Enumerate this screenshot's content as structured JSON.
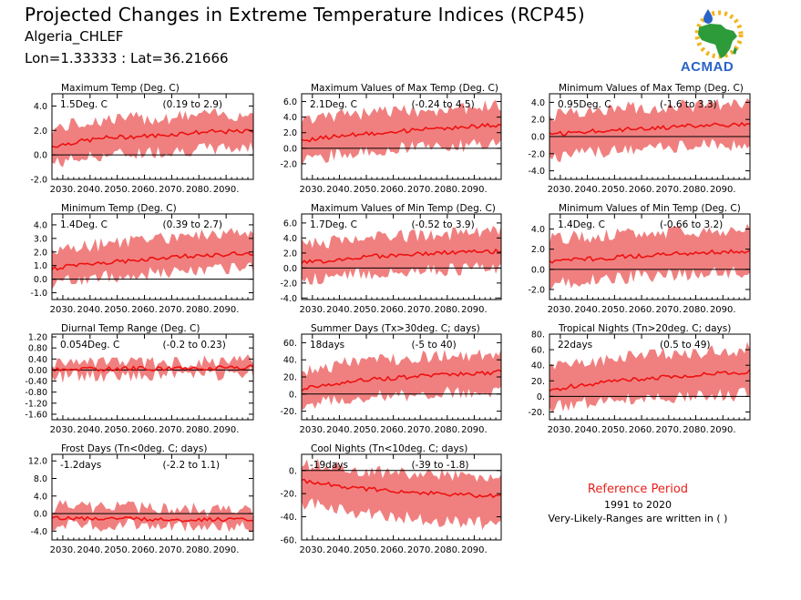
{
  "header": {
    "title": "Projected Changes in Extreme Temperature Indices (RCP45)",
    "region": "Algeria_CHLEF",
    "coords": "Lon=1.33333 : Lat=36.21666"
  },
  "logo": {
    "text": "ACMAD",
    "icon": "africa-map-logo-icon"
  },
  "colors": {
    "band": "#f08080",
    "line": "#ee1111",
    "zero": "#000000",
    "ref_title": "#e8201a"
  },
  "reference": {
    "title": "Reference Period",
    "years": "1991 to 2020",
    "note": "Very-Likely-Ranges are written in ( )"
  },
  "chart_data": [
    {
      "type": "area",
      "title": "Maximum Temp (Deg. C)",
      "value_label": "1.5Deg. C",
      "range_label": "(0.19 to 2.9)",
      "xlim": [
        2026,
        2100
      ],
      "xticks": [
        "2030.",
        "2040.",
        "2050.",
        "2060.",
        "2070.",
        "2080.",
        "2090."
      ],
      "ylim": [
        -2,
        5
      ],
      "yticks": [
        -2,
        0,
        2,
        4
      ],
      "ytick_labels": [
        "-2.0",
        "0.0",
        "2.0",
        "4.0"
      ],
      "x": [
        2026,
        2036,
        2046,
        2056,
        2066,
        2076,
        2086,
        2096,
        2100
      ],
      "median": [
        0.7,
        1.1,
        1.4,
        1.5,
        1.6,
        1.8,
        1.9,
        1.9,
        2.0
      ],
      "lower": [
        -0.7,
        -0.3,
        0.0,
        0.1,
        0.3,
        0.4,
        0.5,
        0.6,
        0.6
      ],
      "upper": [
        2.1,
        2.6,
        2.9,
        3.0,
        3.0,
        3.2,
        3.3,
        3.3,
        3.4
      ]
    },
    {
      "type": "area",
      "title": "Maximum Values of Max Temp (Deg. C)",
      "value_label": "2.1Deg. C",
      "range_label": "(-0.24 to 4.5)",
      "xlim": [
        2026,
        2100
      ],
      "xticks": [
        "2030.",
        "2040.",
        "2050.",
        "2060.",
        "2070.",
        "2080.",
        "2090."
      ],
      "ylim": [
        -4,
        7
      ],
      "yticks": [
        -2,
        0,
        2,
        4,
        6
      ],
      "ytick_labels": [
        "-2.0",
        "0.0",
        "2.0",
        "4.0",
        "6.0"
      ],
      "x": [
        2026,
        2036,
        2046,
        2056,
        2066,
        2076,
        2086,
        2096,
        2100
      ],
      "median": [
        1.0,
        1.4,
        1.8,
        2.0,
        2.3,
        2.5,
        2.7,
        2.9,
        3.0
      ],
      "lower": [
        -1.5,
        -1.0,
        -0.5,
        -0.2,
        0.0,
        0.2,
        0.3,
        0.5,
        0.5
      ],
      "upper": [
        3.5,
        4.0,
        4.4,
        4.6,
        4.8,
        5.0,
        5.2,
        5.4,
        5.5
      ]
    },
    {
      "type": "area",
      "title": "Minimum Values of Max Temp (Deg. C)",
      "value_label": "0.95Deg. C",
      "range_label": "(-1.6 to 3.3)",
      "xlim": [
        2026,
        2100
      ],
      "xticks": [
        "2030.",
        "2040.",
        "2050.",
        "2060.",
        "2070.",
        "2080.",
        "2090."
      ],
      "ylim": [
        -5,
        5
      ],
      "yticks": [
        -4,
        -2,
        0,
        2,
        4
      ],
      "ytick_labels": [
        "-4.0",
        "-2.0",
        "0.0",
        "2.0",
        "4.0"
      ],
      "x": [
        2026,
        2036,
        2046,
        2056,
        2066,
        2076,
        2086,
        2096,
        2100
      ],
      "median": [
        0.2,
        0.5,
        0.7,
        0.9,
        1.0,
        1.2,
        1.3,
        1.4,
        1.3
      ],
      "lower": [
        -2.5,
        -2.0,
        -1.8,
        -1.5,
        -1.3,
        -1.2,
        -1.0,
        -1.0,
        -1.0
      ],
      "upper": [
        2.5,
        3.0,
        3.2,
        3.4,
        3.5,
        3.6,
        3.7,
        3.8,
        3.8
      ]
    },
    {
      "type": "area",
      "title": "Minimum Temp (Deg. C)",
      "value_label": "1.4Deg. C",
      "range_label": "(0.39 to 2.7)",
      "xlim": [
        2026,
        2100
      ],
      "xticks": [
        "2030.",
        "2040.",
        "2050.",
        "2060.",
        "2070.",
        "2080.",
        "2090."
      ],
      "ylim": [
        -1.5,
        4.8
      ],
      "yticks": [
        -1,
        0,
        1,
        2,
        3,
        4
      ],
      "ytick_labels": [
        "-1.0",
        "0.0",
        "1.0",
        "2.0",
        "3.0",
        "4.0"
      ],
      "x": [
        2026,
        2036,
        2046,
        2056,
        2066,
        2076,
        2086,
        2096,
        2100
      ],
      "median": [
        0.8,
        1.0,
        1.2,
        1.4,
        1.5,
        1.7,
        1.8,
        1.9,
        1.9
      ],
      "lower": [
        -0.3,
        0.0,
        0.2,
        0.3,
        0.5,
        0.6,
        0.7,
        0.8,
        0.8
      ],
      "upper": [
        2.0,
        2.3,
        2.6,
        2.8,
        3.0,
        3.2,
        3.3,
        3.4,
        3.5
      ]
    },
    {
      "type": "area",
      "title": "Maximum Values of Min Temp (Deg. C)",
      "value_label": "1.7Deg. C",
      "range_label": "(-0.52 to 3.9)",
      "xlim": [
        2026,
        2100
      ],
      "xticks": [
        "2030.",
        "2040.",
        "2050.",
        "2060.",
        "2070.",
        "2080.",
        "2090."
      ],
      "ylim": [
        -4.2,
        7.2
      ],
      "yticks": [
        -4,
        -2,
        0,
        2,
        4,
        6
      ],
      "ytick_labels": [
        "-4.0",
        "-2.0",
        "0.0",
        "2.0",
        "4.0",
        "6.0"
      ],
      "x": [
        2026,
        2036,
        2046,
        2056,
        2066,
        2076,
        2086,
        2096,
        2100
      ],
      "median": [
        0.7,
        1.0,
        1.4,
        1.6,
        1.8,
        2.0,
        2.1,
        2.2,
        2.2
      ],
      "lower": [
        -1.5,
        -1.2,
        -0.8,
        -0.6,
        -0.4,
        -0.2,
        -0.1,
        0.0,
        0.0
      ],
      "upper": [
        3.0,
        3.5,
        3.9,
        4.1,
        4.3,
        4.5,
        4.6,
        4.8,
        4.8
      ]
    },
    {
      "type": "area",
      "title": "Minimum Values of Min Temp (Deg. C)",
      "value_label": "1.4Deg. C",
      "range_label": "(-0.66 to 3.2)",
      "xlim": [
        2026,
        2100
      ],
      "xticks": [
        "2030.",
        "2040.",
        "2050.",
        "2060.",
        "2070.",
        "2080.",
        "2090."
      ],
      "ylim": [
        -3,
        5.5
      ],
      "yticks": [
        -2,
        0,
        2,
        4
      ],
      "ytick_labels": [
        "-2.0",
        "0.0",
        "2.0",
        "4.0"
      ],
      "x": [
        2026,
        2036,
        2046,
        2056,
        2066,
        2076,
        2086,
        2096,
        2100
      ],
      "median": [
        0.8,
        1.0,
        1.1,
        1.3,
        1.4,
        1.6,
        1.7,
        1.8,
        1.7
      ],
      "lower": [
        -1.5,
        -1.2,
        -1.0,
        -0.8,
        -0.6,
        -0.5,
        -0.4,
        -0.3,
        -0.3
      ],
      "upper": [
        3.0,
        3.2,
        3.4,
        3.5,
        3.6,
        3.7,
        3.8,
        3.9,
        3.9
      ]
    },
    {
      "type": "area",
      "title": "Diurnal Temp Range (Deg. C)",
      "value_label": "0.054Deg. C",
      "range_label": "(-0.2 to 0.23)",
      "xlim": [
        2026,
        2100
      ],
      "xticks": [
        "2030.",
        "2040.",
        "2050.",
        "2060.",
        "2070.",
        "2080.",
        "2090."
      ],
      "ylim": [
        -1.8,
        1.3
      ],
      "yticks": [
        -1.6,
        -1.2,
        -0.8,
        -0.4,
        0,
        0.4,
        0.8,
        1.2
      ],
      "ytick_labels": [
        "-1.60",
        "-1.20",
        "-0.80",
        "-0.40",
        "0.00",
        "0.40",
        "0.80",
        "1.20"
      ],
      "x": [
        2026,
        2036,
        2046,
        2056,
        2066,
        2076,
        2086,
        2096,
        2100
      ],
      "median": [
        0.0,
        0.02,
        0.04,
        0.05,
        0.06,
        0.07,
        0.08,
        0.1,
        0.15
      ],
      "lower": [
        -0.25,
        -0.2,
        -0.2,
        -0.18,
        -0.16,
        -0.15,
        -0.14,
        -0.12,
        -0.1
      ],
      "upper": [
        0.2,
        0.22,
        0.24,
        0.25,
        0.26,
        0.28,
        0.3,
        0.32,
        0.35
      ]
    },
    {
      "type": "area",
      "title": "Summer Days (Tx>30deg. C; days)",
      "value_label": "18days",
      "range_label": "(-5 to 40)",
      "xlim": [
        2026,
        2100
      ],
      "xticks": [
        "2030.",
        "2040.",
        "2050.",
        "2060.",
        "2070.",
        "2080.",
        "2090."
      ],
      "ylim": [
        -30,
        70
      ],
      "yticks": [
        -20,
        0,
        20,
        40,
        60
      ],
      "ytick_labels": [
        "-20.",
        "0.",
        "20.",
        "40.",
        "60."
      ],
      "x": [
        2026,
        2036,
        2046,
        2056,
        2066,
        2076,
        2086,
        2096,
        2100
      ],
      "median": [
        6,
        11,
        15,
        18,
        20,
        22,
        24,
        25,
        26
      ],
      "lower": [
        -12,
        -8,
        -5,
        -3,
        -1,
        1,
        2,
        3,
        4
      ],
      "upper": [
        25,
        32,
        38,
        40,
        42,
        44,
        46,
        47,
        48
      ]
    },
    {
      "type": "area",
      "title": "Tropical Nights (Tn>20deg. C; days)",
      "value_label": "22days",
      "range_label": "(0.5 to 49)",
      "xlim": [
        2026,
        2100
      ],
      "xticks": [
        "2030.",
        "2040.",
        "2050.",
        "2060.",
        "2070.",
        "2080.",
        "2090."
      ],
      "ylim": [
        -30,
        80
      ],
      "yticks": [
        -20,
        0,
        20,
        40,
        60,
        80
      ],
      "ytick_labels": [
        "-20.",
        "0.",
        "20.",
        "40.",
        "60.",
        "80."
      ],
      "x": [
        2026,
        2036,
        2046,
        2056,
        2066,
        2076,
        2086,
        2096,
        2100
      ],
      "median": [
        8,
        14,
        18,
        21,
        24,
        27,
        29,
        31,
        32
      ],
      "lower": [
        -15,
        -10,
        -6,
        -4,
        -2,
        0,
        1,
        2,
        3
      ],
      "upper": [
        35,
        42,
        48,
        51,
        54,
        56,
        58,
        60,
        62
      ]
    },
    {
      "type": "area",
      "title": "Frost Days (Tn<0deg. C; days)",
      "value_label": "-1.2days",
      "range_label": "(-2.2 to 1.1)",
      "xlim": [
        2026,
        2100
      ],
      "xticks": [
        "2030.",
        "2040.",
        "2050.",
        "2060.",
        "2070.",
        "2080.",
        "2090."
      ],
      "ylim": [
        -6,
        13.5
      ],
      "yticks": [
        -4,
        0,
        4,
        8,
        12
      ],
      "ytick_labels": [
        "-4.0",
        "0.0",
        "4.0",
        "8.0",
        "12.0"
      ],
      "x": [
        2026,
        2036,
        2046,
        2056,
        2066,
        2076,
        2086,
        2096,
        2100
      ],
      "median": [
        -1.0,
        -1.1,
        -1.2,
        -1.3,
        -1.3,
        -1.4,
        -1.4,
        -1.5,
        -1.5
      ],
      "lower": [
        -2.5,
        -2.5,
        -2.6,
        -2.6,
        -2.7,
        -2.7,
        -2.8,
        -2.8,
        -2.8
      ],
      "upper": [
        1.5,
        1.8,
        1.5,
        1.3,
        1.2,
        1.0,
        0.8,
        0.7,
        0.6
      ]
    },
    {
      "type": "area",
      "title": "Cool Nights (Tn<10deg. C; days)",
      "value_label": "-19days",
      "range_label": "(-39 to -1.8)",
      "xlim": [
        2026,
        2100
      ],
      "xticks": [
        "2030.",
        "2040.",
        "2050.",
        "2060.",
        "2070.",
        "2080.",
        "2090."
      ],
      "ylim": [
        -60,
        14
      ],
      "yticks": [
        -60,
        -40,
        -20,
        0
      ],
      "ytick_labels": [
        "-60.",
        "-40.",
        "-20.",
        "0."
      ],
      "x": [
        2026,
        2036,
        2046,
        2056,
        2066,
        2076,
        2086,
        2096,
        2100
      ],
      "median": [
        -9,
        -12,
        -15,
        -17,
        -19,
        -20,
        -21,
        -22,
        -22
      ],
      "lower": [
        -28,
        -32,
        -36,
        -39,
        -41,
        -43,
        -45,
        -46,
        -47
      ],
      "upper": [
        6,
        4,
        1,
        -1,
        -2,
        -3,
        -4,
        -5,
        -5
      ]
    }
  ]
}
